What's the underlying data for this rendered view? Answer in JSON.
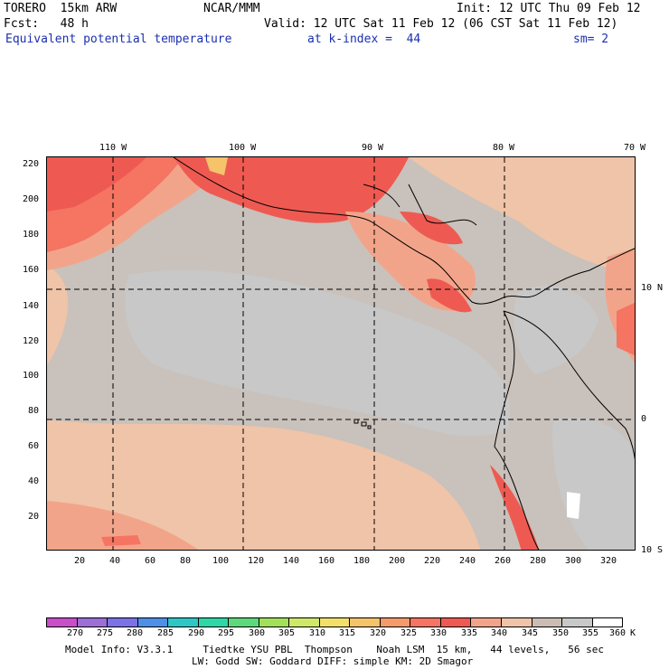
{
  "header": {
    "model": "TORERO  15km ARW",
    "center": "NCAR/MMM",
    "init": "Init: 12 UTC Thu 09 Feb 12",
    "fcst": "Fcst:   48 h",
    "valid": "Valid: 12 UTC Sat 11 Feb 12 (06 CST Sat 11 Feb 12)",
    "field": "Equivalent potential temperature",
    "level": "at k-index =  44",
    "smooth": "sm= 2"
  },
  "map": {
    "lon_labels": [
      "110 W",
      "100 W",
      "90 W",
      "80 W",
      "70 W"
    ],
    "lat_labels": [
      "10 N",
      "0",
      "10 S"
    ],
    "y_grid_ticks": [
      "220",
      "200",
      "180",
      "160",
      "140",
      "120",
      "100",
      "80",
      "60",
      "40",
      "20"
    ],
    "x_grid_ticks": [
      "20",
      "40",
      "60",
      "80",
      "100",
      "120",
      "140",
      "160",
      "180",
      "200",
      "220",
      "240",
      "260",
      "280",
      "300",
      "320"
    ]
  },
  "colorbar": {
    "unit": "K",
    "levels": [
      "270",
      "275",
      "280",
      "285",
      "290",
      "295",
      "300",
      "305",
      "310",
      "315",
      "320",
      "325",
      "330",
      "335",
      "340",
      "345",
      "350",
      "355",
      "360"
    ],
    "colors": [
      "#c94fc9",
      "#9b6fd6",
      "#7b72e6",
      "#4f8fe6",
      "#2fc6c6",
      "#2fd6a6",
      "#5cd97a",
      "#a2e05a",
      "#cfe86a",
      "#f2e06a",
      "#f5c36a",
      "#f59a6a",
      "#f57462",
      "#ee5a52",
      "#f2a48a",
      "#efc4a8",
      "#cbbdb3",
      "#c8c8c8",
      "#ffffff"
    ]
  },
  "footer": {
    "line1": "Model Info: V3.3.1     Tiedtke YSU PBL  Thompson    Noah LSM  15 km,   44 levels,   56 sec",
    "line2": "LW: Godd SW: Goddard DIFF: simple KM: 2D Smagor"
  }
}
